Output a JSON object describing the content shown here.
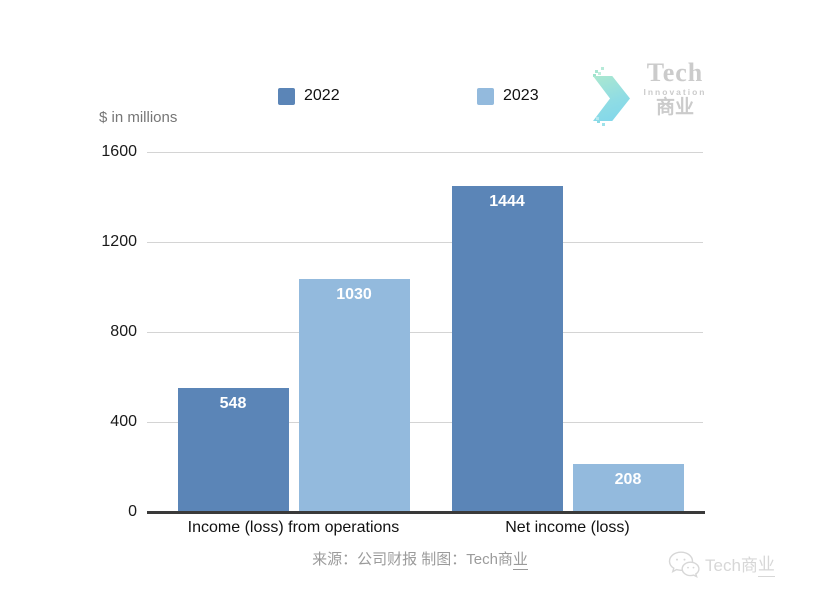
{
  "logo": {
    "line1": "Tech",
    "line2": "Innovation",
    "line3": "商业"
  },
  "chart_data": {
    "type": "bar",
    "title": "",
    "ylabel": "$ in millions",
    "categories": [
      "Income (loss) from operations",
      "Net income (loss)"
    ],
    "series": [
      {
        "name": "2022",
        "color": "#5b85b7",
        "values": [
          548,
          1444
        ]
      },
      {
        "name": "2023",
        "color": "#93badd",
        "values": [
          1030,
          208
        ]
      }
    ],
    "bar_value_labels": [
      [
        "548",
        "1444"
      ],
      [
        "1030",
        "208"
      ]
    ],
    "ylim": [
      0,
      1600
    ],
    "yticks": [
      0,
      400,
      800,
      1200,
      1600
    ],
    "grid": true,
    "legend_position": "top"
  },
  "footer": {
    "source_main": "来源：公司财报 制图：Tech商",
    "source_tail": "业",
    "watermark_main": "Tech商",
    "watermark_tail": "业"
  }
}
